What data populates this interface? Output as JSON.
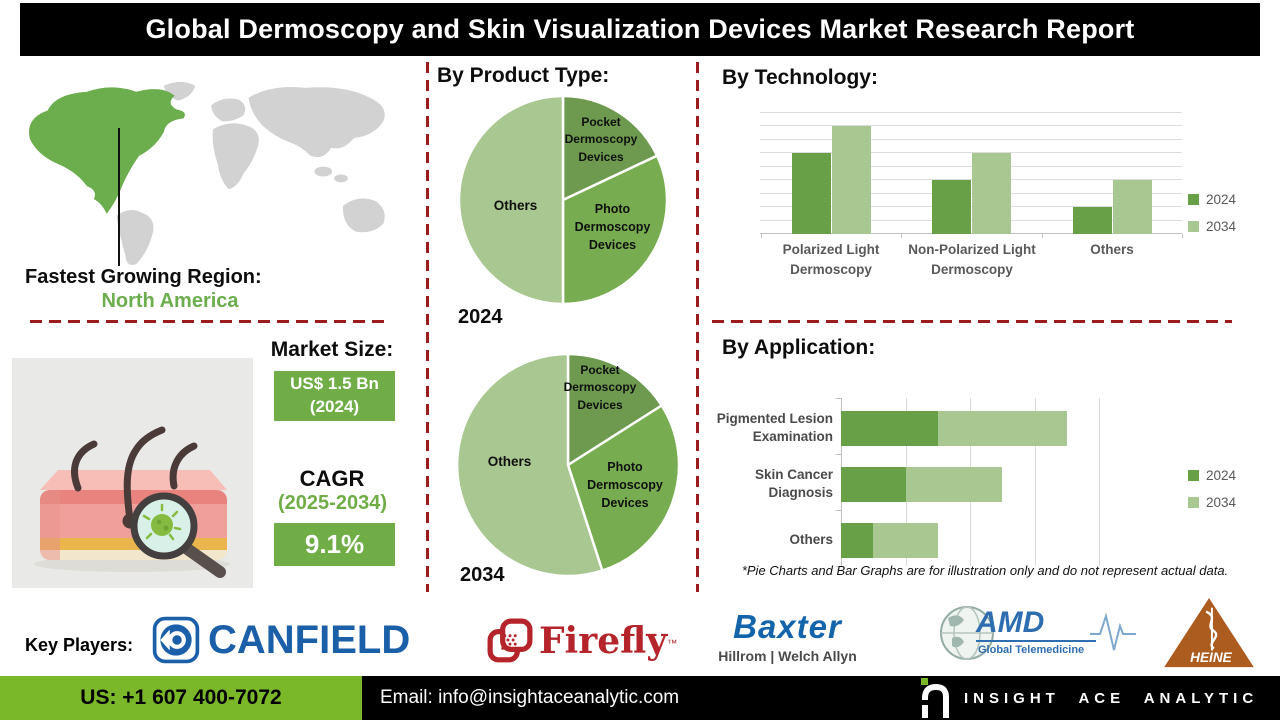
{
  "title": "Global Dermoscopy and Skin Visualization Devices Market Research Report",
  "map": {
    "region_label": "Fastest Growing Region:",
    "region_value": "North America"
  },
  "market": {
    "size_label": "Market Size:",
    "size_value": "US$ 1.5 Bn\n(2024)",
    "cagr_label": "CAGR",
    "cagr_period": "(2025-2034)",
    "cagr_value": "9.1%"
  },
  "sections": {
    "product_type": "By Product Type:",
    "technology": "By Technology:",
    "application": "By Application:"
  },
  "disclaimer": "*Pie Charts and Bar Graphs are for illustration only and do not represent actual data.",
  "key_players": {
    "label": "Key Players:",
    "canfield": "CANFIELD",
    "firefly": "Firefly",
    "firefly_tm": "™",
    "baxter": "Baxter",
    "baxter_sub": "Hillrom | Welch Allyn",
    "amd": "AMD",
    "amd_sub": "Global Telemedicine",
    "heine": "HEINE"
  },
  "footer": {
    "phone": "US: +1 607 400-7072",
    "email": "Email: info@insightaceanalytic.com",
    "brand": "INSIGHT ACE ANALYTIC"
  },
  "chart_data": [
    {
      "type": "pie",
      "year": "2024",
      "section": "By Product Type:",
      "slices": [
        {
          "label": "Pocket Dermoscopy Devices",
          "value": 18
        },
        {
          "label": "Photo Dermoscopy Devices",
          "value": 32
        },
        {
          "label": "Others",
          "value": 50
        }
      ],
      "unit": "percent (illustrative only)"
    },
    {
      "type": "pie",
      "year": "2034",
      "section": "By Product Type:",
      "slices": [
        {
          "label": "Pocket Dermoscopy Devices",
          "value": 16
        },
        {
          "label": "Photo Dermoscopy Devices",
          "value": 29
        },
        {
          "label": "Others",
          "value": 55
        }
      ],
      "unit": "percent (illustrative only)"
    },
    {
      "type": "bar",
      "title": "By Technology:",
      "categories": [
        "Polarized Light Dermoscopy",
        "Non-Polarized Light Dermoscopy",
        "Others"
      ],
      "series": [
        {
          "name": "2024",
          "values": [
            6,
            4,
            2
          ]
        },
        {
          "name": "2034",
          "values": [
            8,
            6,
            4
          ]
        }
      ],
      "ylim": [
        0,
        9
      ],
      "gridlines": true,
      "legend_position": "right",
      "unit": "relative units (illustrative only)"
    },
    {
      "type": "bar-horizontal-stacked",
      "title": "By Application:",
      "categories": [
        "Pigmented Lesion Examination",
        "Skin Cancer Diagnosis",
        "Others"
      ],
      "series": [
        {
          "name": "2024",
          "values": [
            1.5,
            1.0,
            0.5
          ]
        },
        {
          "name": "2034",
          "values": [
            2.0,
            1.5,
            1.0
          ]
        }
      ],
      "xlim": [
        0,
        4
      ],
      "gridlines": true,
      "legend_position": "right",
      "unit": "relative units (illustrative only)"
    }
  ],
  "colors": {
    "slice_pocket": "#6d9a4e",
    "slice_photo": "#77ad50",
    "slice_others": "#a9c791",
    "bar_2024": "#68a047",
    "bar_2034": "#a9c791",
    "accent_green": "#70ad47",
    "region_green": "#6cad4e",
    "map_gray": "#d2d2d2",
    "dashed_red": "#9c1c1c",
    "footer_green": "#7ab829",
    "canfield_blue": "#1b5fa8",
    "firefly_red": "#b5242a",
    "baxter_blue": "#1464ac",
    "amd_blue": "#2d6db0",
    "heine_orange": "#ad5c20"
  }
}
